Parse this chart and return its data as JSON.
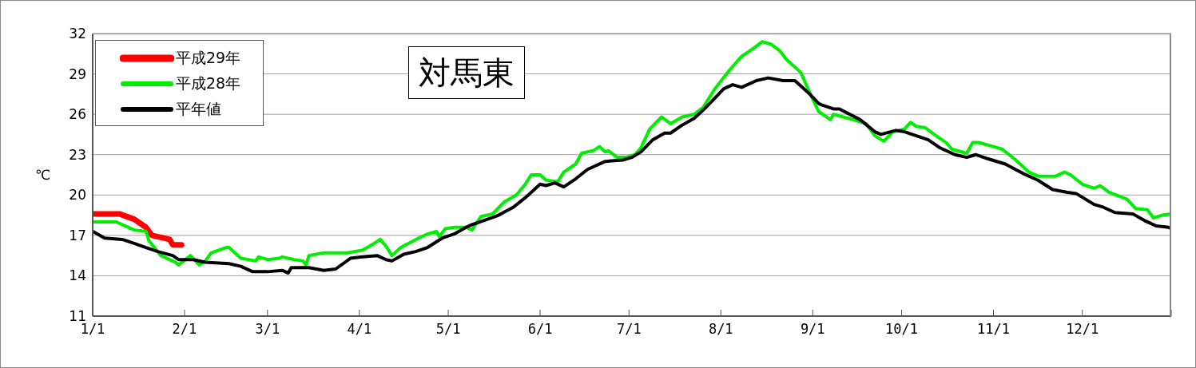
{
  "chart_data": {
    "type": "line",
    "title": "対馬東",
    "ylabel": "℃",
    "xlim": [
      "--01-01",
      "--12-31"
    ],
    "xticks": [
      {
        "value": "--01-01",
        "label": "1/1"
      },
      {
        "value": "--02-01",
        "label": "2/1"
      },
      {
        "value": "--03-01",
        "label": "3/1"
      },
      {
        "value": "--04-01",
        "label": "4/1"
      },
      {
        "value": "--05-01",
        "label": "5/1"
      },
      {
        "value": "--06-01",
        "label": "6/1"
      },
      {
        "value": "--07-01",
        "label": "7/1"
      },
      {
        "value": "--08-01",
        "label": "8/1"
      },
      {
        "value": "--09-01",
        "label": "9/1"
      },
      {
        "value": "--10-01",
        "label": "10/1"
      },
      {
        "value": "--11-01",
        "label": "11/1"
      },
      {
        "value": "--12-01",
        "label": "12/1"
      },
      {
        "value": "--12-31",
        "label": null
      }
    ],
    "ylim": [
      11,
      32
    ],
    "yticks": [
      11,
      14,
      17,
      20,
      23,
      26,
      29,
      32
    ],
    "grid": "y",
    "legend": "top left",
    "series": [
      {
        "name": "平成29年",
        "color": "#ff0000",
        "x": [
          "--01-01",
          "--01-10",
          "--01-15",
          "--01-19",
          "--01-21",
          "--01-27",
          "--01-28",
          "--01-31"
        ],
        "values": [
          18.6,
          18.6,
          18.2,
          17.6,
          17.0,
          16.7,
          16.3,
          16.3
        ]
      },
      {
        "name": "平成28年",
        "color": "#00ee00",
        "x": [
          "--01-01",
          "--01-09",
          "--01-15",
          "--01-19",
          "--01-20",
          "--01-24",
          "--01-29",
          "--01-30",
          "--02-03",
          "--02-06",
          "--02-08",
          "--02-10",
          "--02-15",
          "--02-16",
          "--02-20",
          "--02-25",
          "--02-26",
          "--03-01",
          "--03-05",
          "--03-06",
          "--03-10",
          "--03-13",
          "--03-14",
          "--03-15",
          "--03-20",
          "--03-28",
          "--04-02",
          "--04-06",
          "--04-08",
          "--04-10",
          "--04-12",
          "--04-15",
          "--04-21",
          "--04-24",
          "--04-27",
          "--04-28",
          "--04-30",
          "--05-03",
          "--05-07",
          "--05-09",
          "--05-12",
          "--05-16",
          "--05-20",
          "--05-24",
          "--05-27",
          "--05-29",
          "--06-01",
          "--06-03",
          "--06-07",
          "--06-09",
          "--06-13",
          "--06-15",
          "--06-19",
          "--06-21",
          "--06-23",
          "--06-24",
          "--06-27",
          "--06-30",
          "--07-03",
          "--07-05",
          "--07-08",
          "--07-12",
          "--07-15",
          "--07-19",
          "--07-23",
          "--07-26",
          "--07-30",
          "--08-04",
          "--08-08",
          "--08-12",
          "--08-15",
          "--08-18",
          "--08-21",
          "--08-23",
          "--08-28",
          "--08-31",
          "--09-03",
          "--09-07",
          "--09-08",
          "--09-13",
          "--09-19",
          "--09-22",
          "--09-25",
          "--09-28",
          "--10-02",
          "--10-04",
          "--10-06",
          "--10-09",
          "--10-12",
          "--10-16",
          "--10-18",
          "--10-23",
          "--10-25",
          "--10-27",
          "--11-01",
          "--11-04",
          "--11-08",
          "--11-13",
          "--11-16",
          "--11-22",
          "--11-25",
          "--11-27",
          "--12-01",
          "--12-05",
          "--12-07",
          "--12-10",
          "--12-16",
          "--12-19",
          "--12-23",
          "--12-25",
          "--12-28",
          "--12-31"
        ],
        "values": [
          18.0,
          18.0,
          17.4,
          17.3,
          16.6,
          15.5,
          15.0,
          14.8,
          15.5,
          14.8,
          15.1,
          15.7,
          16.1,
          16.1,
          15.3,
          15.1,
          15.4,
          15.2,
          15.3,
          15.4,
          15.2,
          15.1,
          14.8,
          15.5,
          15.7,
          15.7,
          15.9,
          16.4,
          16.7,
          16.2,
          15.5,
          16.1,
          16.8,
          17.1,
          17.3,
          16.9,
          17.5,
          17.6,
          17.6,
          17.4,
          18.4,
          18.6,
          19.5,
          20.0,
          20.8,
          21.5,
          21.5,
          21.1,
          21.0,
          21.7,
          22.3,
          23.1,
          23.3,
          23.6,
          23.2,
          23.3,
          22.8,
          22.8,
          23.0,
          23.5,
          24.9,
          25.8,
          25.3,
          25.8,
          26.0,
          26.5,
          27.9,
          29.3,
          30.3,
          30.9,
          31.4,
          31.2,
          30.7,
          30.1,
          29.1,
          27.6,
          26.2,
          25.6,
          26.0,
          25.7,
          25.3,
          24.4,
          24.0,
          24.7,
          24.9,
          25.4,
          25.1,
          25.0,
          24.5,
          23.9,
          23.4,
          23.1,
          23.9,
          23.9,
          23.6,
          23.4,
          22.7,
          21.7,
          21.4,
          21.4,
          21.7,
          21.5,
          20.8,
          20.5,
          20.7,
          20.2,
          19.7,
          19.0,
          18.9,
          18.3,
          18.5,
          18.6
        ]
      },
      {
        "name": "平年値",
        "color": "#000000",
        "x": [
          "--01-01",
          "--01-05",
          "--01-11",
          "--01-15",
          "--01-19",
          "--01-23",
          "--01-28",
          "--01-30",
          "--02-04",
          "--02-08",
          "--02-16",
          "--02-20",
          "--02-24",
          "--03-01",
          "--03-06",
          "--03-08",
          "--03-09",
          "--03-15",
          "--03-20",
          "--03-24",
          "--03-29",
          "--04-02",
          "--04-07",
          "--04-10",
          "--04-12",
          "--04-16",
          "--04-20",
          "--04-24",
          "--04-29",
          "--05-03",
          "--05-07",
          "--05-09",
          "--05-13",
          "--05-18",
          "--05-23",
          "--05-27",
          "--05-29",
          "--06-01",
          "--06-03",
          "--06-06",
          "--06-09",
          "--06-13",
          "--06-17",
          "--06-23",
          "--06-29",
          "--07-02",
          "--07-05",
          "--07-09",
          "--07-13",
          "--07-15",
          "--07-19",
          "--07-23",
          "--07-26",
          "--07-30",
          "--08-02",
          "--08-05",
          "--08-08",
          "--08-13",
          "--08-17",
          "--08-22",
          "--08-26",
          "--08-28",
          "--08-31",
          "--09-03",
          "--09-04",
          "--09-08",
          "--09-10",
          "--09-17",
          "--09-22",
          "--09-24",
          "--09-29",
          "--10-02",
          "--10-10",
          "--10-14",
          "--10-19",
          "--10-23",
          "--10-26",
          "--10-30",
          "--11-05",
          "--11-11",
          "--11-16",
          "--11-21",
          "--11-26",
          "--11-29",
          "--12-05",
          "--12-08",
          "--12-12",
          "--12-18",
          "--12-22",
          "--12-26",
          "--12-30",
          "--12-31"
        ],
        "values": [
          17.3,
          16.8,
          16.7,
          16.4,
          16.1,
          15.8,
          15.5,
          15.2,
          15.2,
          15.0,
          14.9,
          14.7,
          14.3,
          14.3,
          14.4,
          14.2,
          14.6,
          14.6,
          14.4,
          14.5,
          15.3,
          15.4,
          15.5,
          15.2,
          15.1,
          15.6,
          15.8,
          16.1,
          16.8,
          17.1,
          17.6,
          17.8,
          18.1,
          18.5,
          19.1,
          19.8,
          20.2,
          20.8,
          20.7,
          20.9,
          20.6,
          21.2,
          21.9,
          22.5,
          22.6,
          22.8,
          23.2,
          24.1,
          24.6,
          24.6,
          25.2,
          25.7,
          26.3,
          27.2,
          27.9,
          28.2,
          28.0,
          28.5,
          28.7,
          28.5,
          28.5,
          28.1,
          27.5,
          26.8,
          26.7,
          26.4,
          26.4,
          25.6,
          24.7,
          24.5,
          24.8,
          24.7,
          24.1,
          23.5,
          23.0,
          22.8,
          23.0,
          22.7,
          22.3,
          21.6,
          21.1,
          20.4,
          20.2,
          20.1,
          19.3,
          19.1,
          18.7,
          18.6,
          18.1,
          17.7,
          17.6,
          17.5
        ]
      }
    ]
  }
}
